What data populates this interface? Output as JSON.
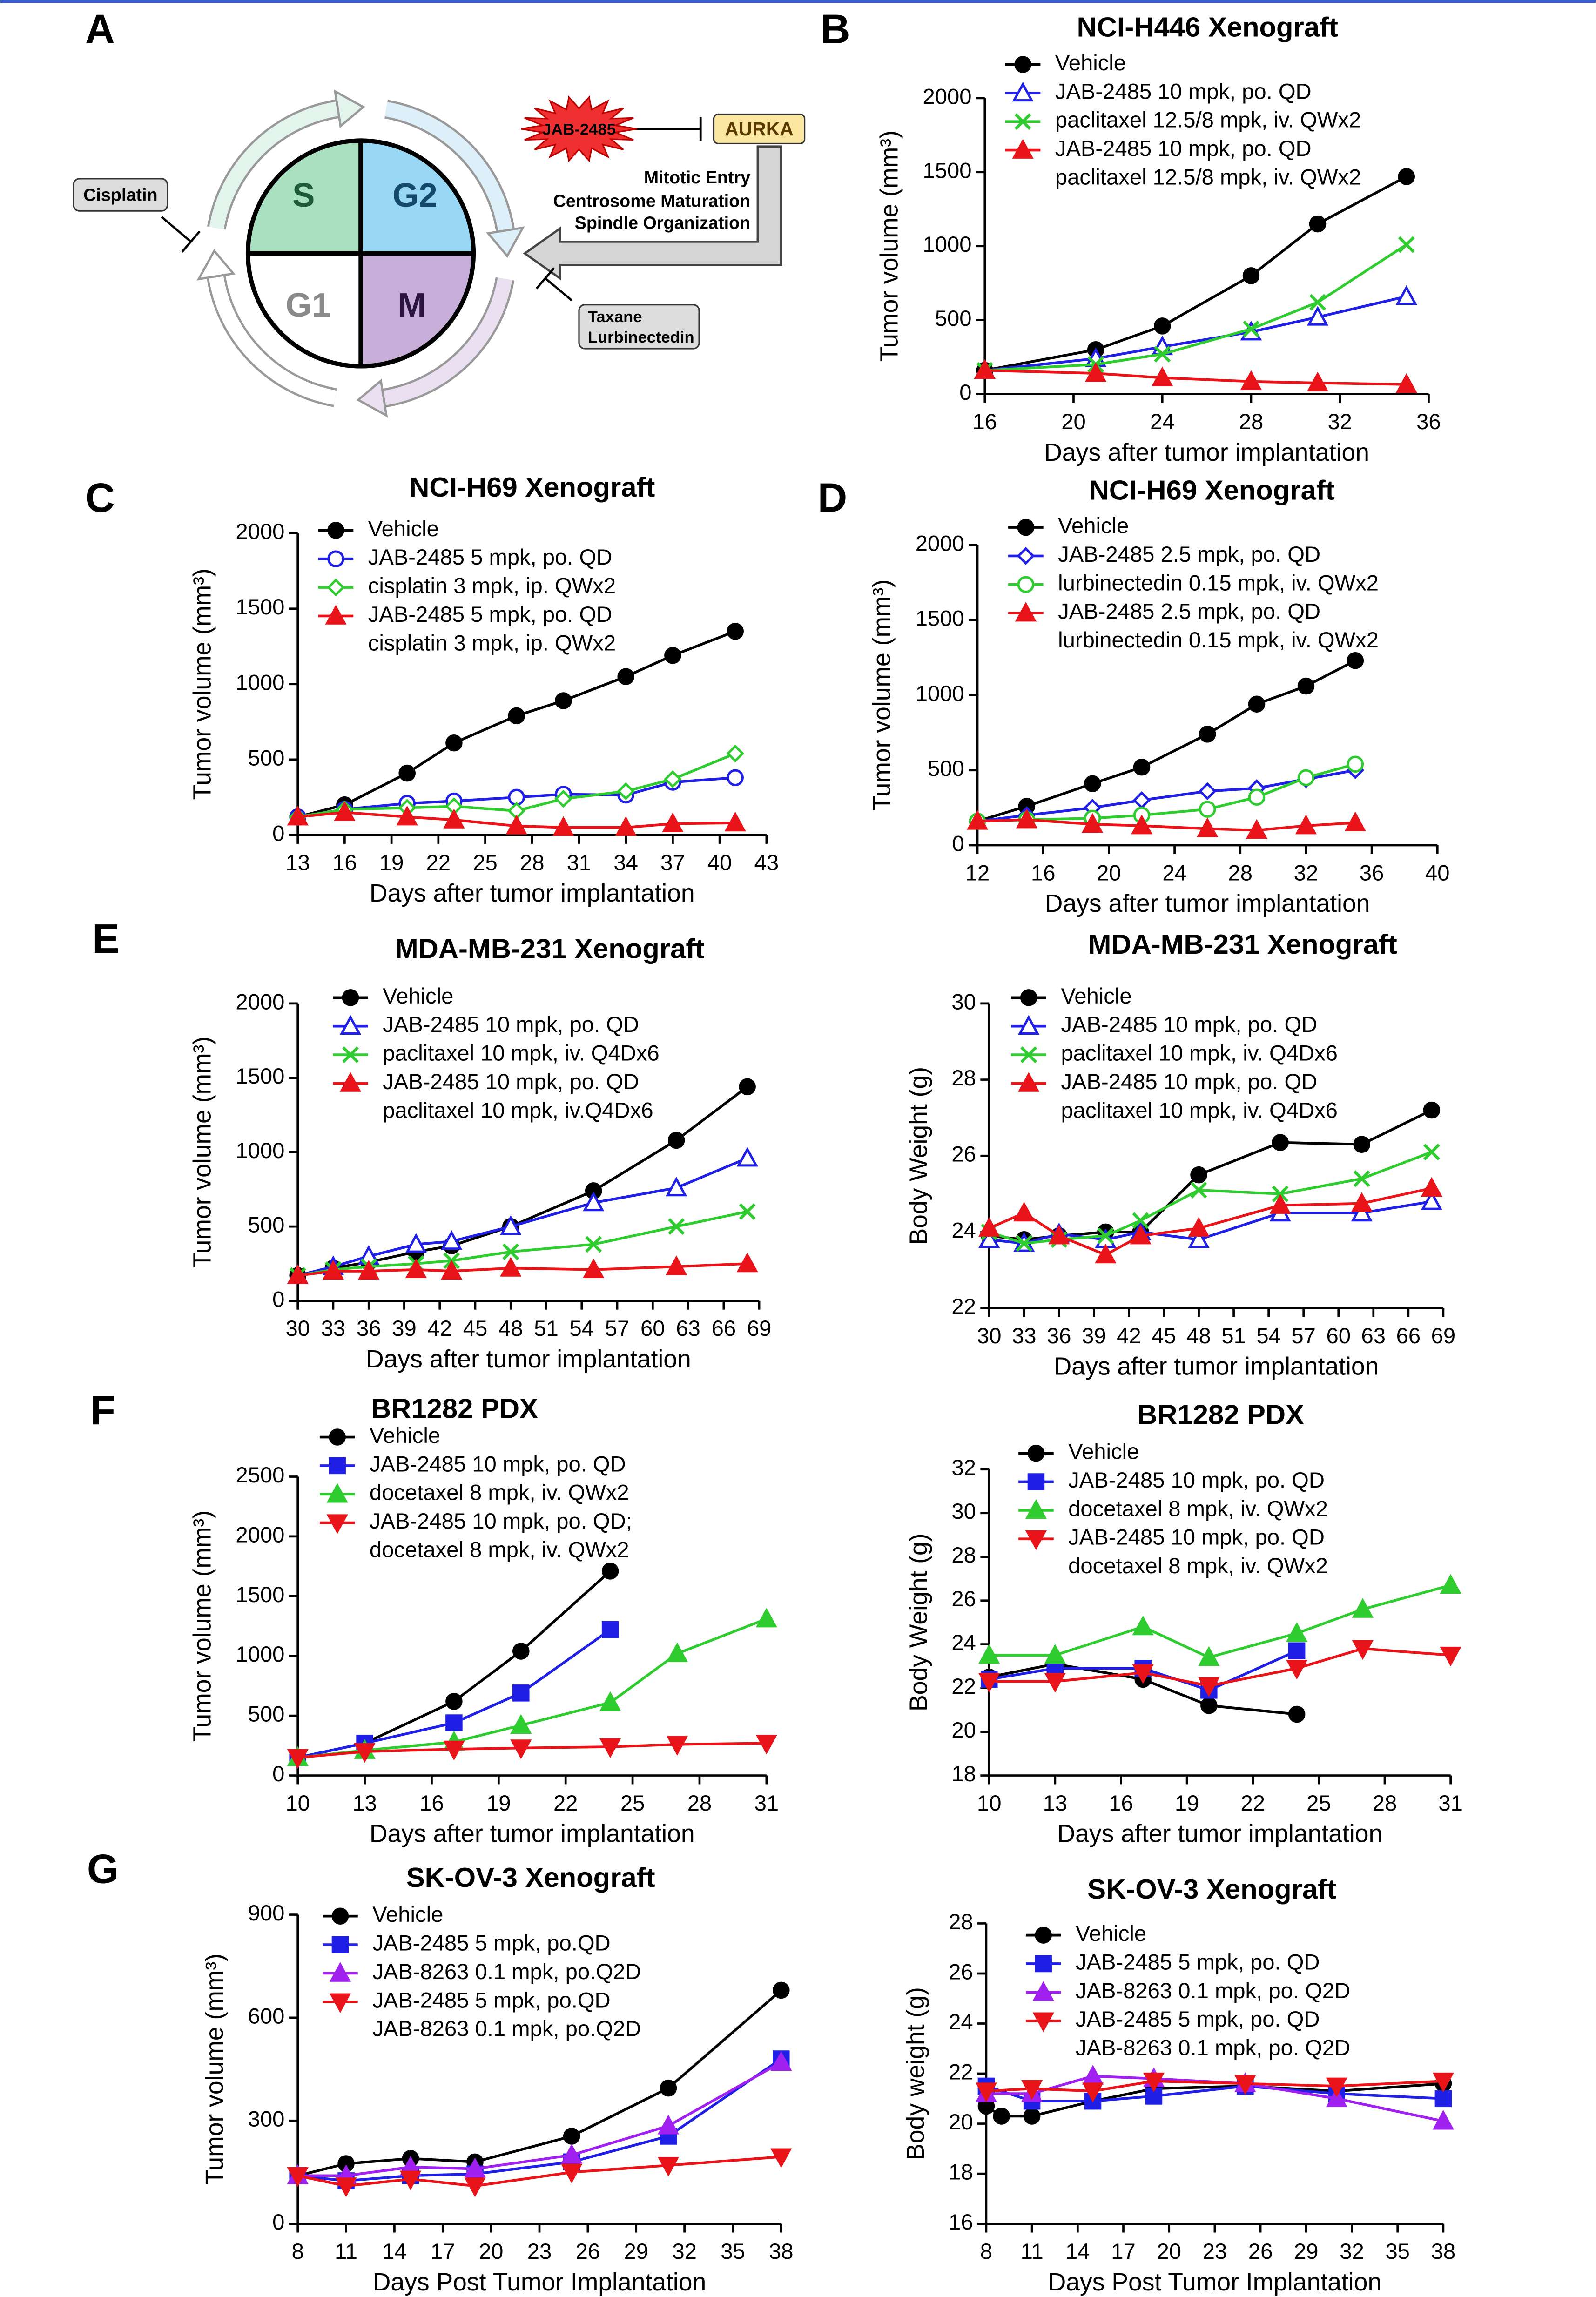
{
  "panel_labels": [
    "A",
    "B",
    "C",
    "D",
    "E",
    "F",
    "G"
  ],
  "diagram": {
    "phases": [
      "S",
      "G2",
      "G1",
      "M"
    ],
    "drug": "JAB-2485",
    "target": "AURKA",
    "functions": [
      "Mitotic Entry",
      "Centrosome Maturation",
      "Spindle Organization"
    ],
    "left_drug": "Cisplatin",
    "right_drugs": [
      "Taxane",
      "Lurbinectedin"
    ]
  },
  "chart_data": [
    {
      "type": "line",
      "title": "NCI-H446 Xenograft",
      "xlabel": "Days after tumor implantation",
      "ylabel": "Tumor volume (mm³)",
      "x": [
        16,
        21,
        24,
        28,
        31,
        35
      ],
      "xlim": [
        16,
        36
      ],
      "xticks": [
        16,
        20,
        24,
        28,
        32,
        36
      ],
      "ylim": [
        0,
        2000
      ],
      "yticks": [
        0,
        500,
        1000,
        1500,
        2000
      ],
      "series": [
        {
          "name": [
            "Vehicle"
          ],
          "color": "#000000",
          "marker": "circle",
          "values": [
            160,
            300,
            460,
            800,
            1150,
            1470
          ]
        },
        {
          "name": [
            "JAB-2485 10 mpk, po. QD"
          ],
          "color": "#1f1fe6",
          "marker": "triangle-open",
          "values": [
            160,
            240,
            320,
            420,
            520,
            660
          ]
        },
        {
          "name": [
            "paclitaxel 12.5/8 mpk, iv. QWx2"
          ],
          "color": "#2ecc2e",
          "marker": "x",
          "values": [
            160,
            200,
            270,
            440,
            620,
            1010
          ]
        },
        {
          "name": [
            "JAB-2485 10 mpk, po. QD",
            "paclitaxel 12.5/8 mpk, iv. QWx2"
          ],
          "color": "#e8141a",
          "marker": "triangle",
          "values": [
            160,
            140,
            110,
            85,
            75,
            65
          ]
        }
      ]
    },
    {
      "type": "line",
      "title": "NCI-H69 Xenograft",
      "xlabel": "Days after tumor implantation",
      "ylabel": "Tumor volume (mm³)",
      "x": [
        13,
        16,
        20,
        23,
        27,
        30,
        34,
        37,
        41
      ],
      "xlim": [
        13,
        43
      ],
      "xticks": [
        13,
        16,
        19,
        22,
        25,
        28,
        31,
        34,
        37,
        40,
        43
      ],
      "ylim": [
        0,
        2000
      ],
      "yticks": [
        0,
        500,
        1000,
        1500,
        2000
      ],
      "series": [
        {
          "name": [
            "Vehicle"
          ],
          "color": "#000000",
          "marker": "circle",
          "values": [
            120,
            200,
            410,
            610,
            790,
            890,
            1050,
            1190,
            1350
          ]
        },
        {
          "name": [
            "JAB-2485 5 mpk, po. QD"
          ],
          "color": "#1f1fe6",
          "marker": "circle-open",
          "values": [
            120,
            170,
            210,
            225,
            250,
            270,
            265,
            350,
            380
          ]
        },
        {
          "name": [
            "cisplatin 3 mpk, ip. QWx2"
          ],
          "color": "#2ecc2e",
          "marker": "diamond-open",
          "values": [
            120,
            170,
            180,
            190,
            160,
            240,
            290,
            370,
            540
          ]
        },
        {
          "name": [
            "JAB-2485 5 mpk, po. QD",
            "cisplatin 3 mpk, ip. QWx2"
          ],
          "color": "#e8141a",
          "marker": "triangle",
          "values": [
            120,
            150,
            120,
            100,
            60,
            50,
            50,
            75,
            80
          ]
        }
      ]
    },
    {
      "type": "line",
      "title": "NCI-H69 Xenograft",
      "xlabel": "Days after tumor implantation",
      "ylabel": "Tumor volume (mm³)",
      "x": [
        12,
        15,
        19,
        22,
        26,
        29,
        32,
        35
      ],
      "xlim": [
        12,
        40
      ],
      "xticks": [
        12,
        16,
        20,
        24,
        28,
        32,
        36,
        40
      ],
      "ylim": [
        0,
        2000
      ],
      "yticks": [
        0,
        500,
        1000,
        1500,
        2000
      ],
      "series": [
        {
          "name": [
            "Vehicle"
          ],
          "color": "#000000",
          "marker": "circle",
          "values": [
            160,
            260,
            410,
            520,
            740,
            940,
            1060,
            1230
          ]
        },
        {
          "name": [
            "JAB-2485 2.5 mpk, po. QD"
          ],
          "color": "#1f1fe6",
          "marker": "diamond-open",
          "values": [
            160,
            200,
            250,
            300,
            360,
            380,
            440,
            500
          ]
        },
        {
          "name": [
            "lurbinectedin 0.15 mpk, iv. QWx2"
          ],
          "color": "#2ecc2e",
          "marker": "circle-open",
          "values": [
            160,
            170,
            180,
            200,
            240,
            320,
            450,
            540
          ]
        },
        {
          "name": [
            "JAB-2485 2.5 mpk, po. QD",
            "lurbinectedin 0.15 mpk, iv. QWx2"
          ],
          "color": "#e8141a",
          "marker": "triangle",
          "values": [
            160,
            170,
            140,
            130,
            110,
            100,
            130,
            150
          ]
        }
      ]
    },
    {
      "type": "line",
      "title": "MDA-MB-231 Xenograft",
      "xlabel": "Days after tumor implantation",
      "ylabel": "Tumor volume (mm³)",
      "x": [
        30,
        33,
        36,
        40,
        43,
        48,
        55,
        62,
        68
      ],
      "xlim": [
        30,
        69
      ],
      "xticks": [
        30,
        33,
        36,
        39,
        42,
        45,
        48,
        51,
        54,
        57,
        60,
        63,
        66,
        69
      ],
      "ylim": [
        0,
        2000
      ],
      "yticks": [
        0,
        500,
        1000,
        1500,
        2000
      ],
      "series": [
        {
          "name": [
            "Vehicle"
          ],
          "color": "#000000",
          "marker": "circle",
          "values": [
            170,
            220,
            260,
            330,
            370,
            500,
            740,
            1080,
            1440
          ]
        },
        {
          "name": [
            "JAB-2485 10 mpk, po. QD"
          ],
          "color": "#1f1fe6",
          "marker": "triangle-open",
          "values": [
            170,
            230,
            300,
            380,
            400,
            500,
            660,
            760,
            960
          ]
        },
        {
          "name": [
            "paclitaxel 10 mpk, iv. Q4Dx6"
          ],
          "color": "#2ecc2e",
          "marker": "x",
          "values": [
            170,
            210,
            230,
            250,
            270,
            330,
            380,
            500,
            600
          ]
        },
        {
          "name": [
            "JAB-2485 10 mpk, po. QD",
            "paclitaxel 10 mpk, iv.Q4Dx6"
          ],
          "color": "#e8141a",
          "marker": "triangle",
          "values": [
            170,
            200,
            200,
            210,
            200,
            220,
            210,
            230,
            250
          ]
        }
      ]
    },
    {
      "type": "line",
      "title": "MDA-MB-231 Xenograft",
      "xlabel": "Days after tumor implantation",
      "ylabel": "Body Weight (g)",
      "x": [
        30,
        33,
        36,
        40,
        43,
        48,
        55,
        62,
        68
      ],
      "xlim": [
        30,
        69
      ],
      "xticks": [
        30,
        33,
        36,
        39,
        42,
        45,
        48,
        51,
        54,
        57,
        60,
        63,
        66,
        69
      ],
      "ylim": [
        22,
        30
      ],
      "yticks": [
        22,
        24,
        26,
        28,
        30
      ],
      "series": [
        {
          "name": [
            "Vehicle"
          ],
          "color": "#000000",
          "marker": "circle",
          "values": [
            23.9,
            23.8,
            23.9,
            24.0,
            24.0,
            25.5,
            26.35,
            26.3,
            27.2
          ]
        },
        {
          "name": [
            "JAB-2485 10 mpk, po. QD"
          ],
          "color": "#1f1fe6",
          "marker": "triangle-open",
          "values": [
            23.8,
            23.7,
            23.95,
            23.8,
            24.0,
            23.8,
            24.5,
            24.5,
            24.8
          ]
        },
        {
          "name": [
            "paclitaxel 10 mpk, iv. Q4Dx6"
          ],
          "color": "#2ecc2e",
          "marker": "x",
          "values": [
            24.0,
            23.7,
            23.8,
            23.9,
            24.3,
            25.1,
            25.0,
            25.4,
            26.1
          ]
        },
        {
          "name": [
            "JAB-2485 10 mpk, po. QD",
            "paclitaxel 10 mpk, iv. Q4Dx6"
          ],
          "color": "#e8141a",
          "marker": "triangle",
          "values": [
            24.1,
            24.5,
            23.9,
            23.4,
            23.9,
            24.1,
            24.7,
            24.75,
            25.15
          ]
        }
      ]
    },
    {
      "type": "line",
      "title": "BR1282 PDX",
      "xlabel": "Days after tumor implantation",
      "ylabel": "Tumor volume (mm³)",
      "x": [
        10,
        13,
        17,
        20,
        24,
        27,
        31
      ],
      "xlim": [
        10,
        31
      ],
      "xticks": [
        10,
        13,
        16,
        19,
        22,
        25,
        28,
        31
      ],
      "ylim": [
        0,
        2500
      ],
      "yticks": [
        0,
        500,
        1000,
        1500,
        2000,
        2500
      ],
      "series": [
        {
          "name": [
            "Vehicle"
          ],
          "color": "#000000",
          "marker": "circle",
          "values": [
            150,
            270,
            620,
            1040,
            1710,
            null,
            null
          ]
        },
        {
          "name": [
            "JAB-2485 10 mpk, po. QD"
          ],
          "color": "#1f1fe6",
          "marker": "square",
          "values": [
            150,
            270,
            440,
            690,
            1220,
            null,
            null
          ]
        },
        {
          "name": [
            "docetaxel 8 mpk, iv. QWx2"
          ],
          "color": "#2ecc2e",
          "marker": "triangle",
          "values": [
            150,
            210,
            280,
            420,
            610,
            1020,
            1310
          ]
        },
        {
          "name": [
            "JAB-2485 10 mpk, po. QD;",
            "docetaxel 8 mpk, iv. QWx2"
          ],
          "color": "#e8141a",
          "marker": "triangle-down",
          "values": [
            150,
            200,
            220,
            230,
            240,
            260,
            270
          ]
        }
      ]
    },
    {
      "type": "line",
      "title": "BR1282 PDX",
      "xlabel": "Days after tumor implantation",
      "ylabel": "Body Weight (g)",
      "x": [
        10,
        13,
        17,
        20,
        24,
        27,
        31
      ],
      "xlim": [
        10,
        31
      ],
      "xticks": [
        10,
        13,
        16,
        19,
        22,
        25,
        28,
        31
      ],
      "ylim": [
        18,
        32
      ],
      "yticks": [
        18,
        20,
        22,
        24,
        26,
        28,
        30,
        32
      ],
      "series": [
        {
          "name": [
            "Vehicle"
          ],
          "color": "#000000",
          "marker": "circle",
          "values": [
            22.5,
            23.1,
            22.4,
            21.2,
            20.8,
            null,
            null
          ]
        },
        {
          "name": [
            "JAB-2485 10 mpk, po. QD"
          ],
          "color": "#1f1fe6",
          "marker": "square",
          "values": [
            22.4,
            22.9,
            22.9,
            21.9,
            23.7,
            null,
            null
          ]
        },
        {
          "name": [
            "docetaxel 8 mpk, iv. QWx2"
          ],
          "color": "#2ecc2e",
          "marker": "triangle",
          "values": [
            23.5,
            23.5,
            24.8,
            23.4,
            24.5,
            25.6,
            26.7
          ]
        },
        {
          "name": [
            "JAB-2485 10 mpk, po. QD",
            "docetaxel 8 mpk, iv. QWx2"
          ],
          "color": "#e8141a",
          "marker": "triangle-down",
          "values": [
            22.3,
            22.3,
            22.7,
            22.1,
            22.9,
            23.8,
            23.5
          ]
        }
      ]
    },
    {
      "type": "line",
      "title": "SK-OV-3 Xenograft",
      "xlabel": "Days Post Tumor Implantation",
      "ylabel": "Tumor volume (mm³)",
      "x": [
        8,
        11,
        15,
        19,
        25,
        31,
        38
      ],
      "xlim": [
        8,
        38
      ],
      "xticks": [
        8,
        11,
        14,
        17,
        20,
        23,
        26,
        29,
        32,
        35,
        38
      ],
      "ylim": [
        0,
        900
      ],
      "yticks": [
        0,
        300,
        600,
        900
      ],
      "series": [
        {
          "name": [
            "Vehicle"
          ],
          "color": "#000000",
          "marker": "circle",
          "values": [
            140,
            175,
            190,
            180,
            255,
            395,
            680
          ]
        },
        {
          "name": [
            "JAB-2485 5 mpk, po.QD"
          ],
          "color": "#1f1fe6",
          "marker": "square",
          "values": [
            140,
            125,
            140,
            145,
            180,
            255,
            480
          ]
        },
        {
          "name": [
            "JAB-8263 0.1 mpk, po.Q2D"
          ],
          "color": "#a020f0",
          "marker": "triangle",
          "values": [
            140,
            140,
            165,
            160,
            200,
            285,
            470
          ]
        },
        {
          "name": [
            "JAB-2485 5 mpk, po.QD",
            "JAB-8263 0.1 mpk, po.Q2D"
          ],
          "color": "#e8141a",
          "marker": "triangle-down",
          "values": [
            140,
            110,
            130,
            110,
            150,
            170,
            195
          ]
        }
      ]
    },
    {
      "type": "line",
      "title": "SK-OV-3 Xenograft",
      "xlabel": "Days Post Tumor Implantation",
      "ylabel": "Body weight (g)",
      "x": [
        8,
        11,
        15,
        19,
        25,
        31,
        38
      ],
      "xlim": [
        8,
        38
      ],
      "xticks": [
        8,
        11,
        14,
        17,
        20,
        23,
        26,
        29,
        32,
        35,
        38
      ],
      "ylim": [
        16,
        28
      ],
      "yticks": [
        16,
        18,
        20,
        22,
        24,
        26,
        28
      ],
      "series": [
        {
          "name": [
            "Vehicle"
          ],
          "color": "#000000",
          "marker": "circle",
          "x": [
            8,
            9,
            11,
            15,
            19,
            25,
            31,
            38
          ],
          "values": [
            20.7,
            20.3,
            20.3,
            20.9,
            21.4,
            21.5,
            21.3,
            21.6
          ]
        },
        {
          "name": [
            "JAB-2485 5 mpk, po. QD"
          ],
          "color": "#1f1fe6",
          "marker": "square",
          "values": [
            21.5,
            20.9,
            20.9,
            21.1,
            21.5,
            21.2,
            21.0
          ]
        },
        {
          "name": [
            "JAB-8263 0.1 mpk, po. Q2D"
          ],
          "color": "#a020f0",
          "marker": "triangle",
          "values": [
            21.2,
            21.2,
            21.9,
            21.8,
            21.6,
            21.0,
            20.1
          ]
        },
        {
          "name": [
            "JAB-2485 5 mpk, po. QD",
            "JAB-8263 0.1 mpk, po. Q2D"
          ],
          "color": "#e8141a",
          "marker": "triangle-down",
          "values": [
            21.3,
            21.4,
            21.3,
            21.7,
            21.6,
            21.5,
            21.7
          ]
        }
      ]
    }
  ]
}
